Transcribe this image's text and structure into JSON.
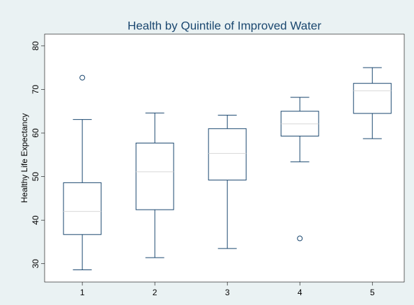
{
  "chart_data": {
    "type": "box",
    "title": "Health by Quintile of Improved Water",
    "y_label": "Healthy Life Expectancy",
    "x": [
      1,
      2,
      3,
      4,
      5
    ],
    "boxes": [
      {
        "low": 28.6,
        "q1": 36.7,
        "median": 42.0,
        "q3": 48.6,
        "high": 63.1,
        "outliers": [
          72.7
        ]
      },
      {
        "low": 31.4,
        "q1": 42.4,
        "median": 51.1,
        "q3": 57.7,
        "high": 64.6,
        "outliers": []
      },
      {
        "low": 33.5,
        "q1": 49.2,
        "median": 55.3,
        "q3": 61.0,
        "high": 64.1,
        "outliers": []
      },
      {
        "low": 53.4,
        "q1": 59.3,
        "median": 62.1,
        "q3": 65.0,
        "high": 68.2,
        "outliers": [
          35.8
        ]
      },
      {
        "low": 58.7,
        "q1": 64.5,
        "median": 69.7,
        "q3": 71.4,
        "high": 75.0,
        "outliers": []
      }
    ],
    "color": "#1a476f",
    "xlim": [
      0.48,
      5.44
    ],
    "xticks": [
      1,
      2,
      3,
      4,
      5
    ],
    "ylim": [
      25.8,
      82.7
    ],
    "yticks": [
      30,
      40,
      50,
      60,
      70,
      80
    ],
    "grid": false
  }
}
